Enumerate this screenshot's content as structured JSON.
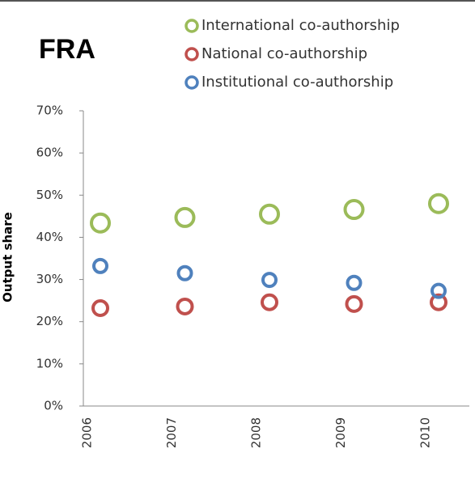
{
  "chart_data": {
    "type": "scatter",
    "title": "FRA",
    "y_label": "Output share",
    "categories": [
      "2006",
      "2007",
      "2008",
      "2009",
      "2010"
    ],
    "series": [
      {
        "name": "International co-authorship",
        "color": "#9bbb59",
        "values": [
          43.4,
          44.7,
          45.5,
          46.6,
          48.0
        ]
      },
      {
        "name": "National co-authorship",
        "color": "#c0504d",
        "values": [
          23.2,
          23.6,
          24.6,
          24.2,
          24.6
        ]
      },
      {
        "name": "Institutional co-authorship",
        "color": "#4f81bd",
        "values": [
          33.2,
          31.5,
          29.9,
          29.2,
          27.3
        ]
      }
    ],
    "ylim": [
      0,
      70
    ],
    "yticks": [
      {
        "value": 0,
        "label": "0%"
      },
      {
        "value": 10,
        "label": "10%"
      },
      {
        "value": 20,
        "label": "20%"
      },
      {
        "value": 30,
        "label": "30%"
      },
      {
        "value": 40,
        "label": "40%"
      },
      {
        "value": 50,
        "label": "50%"
      },
      {
        "value": 60,
        "label": "60%"
      },
      {
        "value": 70,
        "label": "70%"
      }
    ],
    "grid": false,
    "legend": "top"
  }
}
